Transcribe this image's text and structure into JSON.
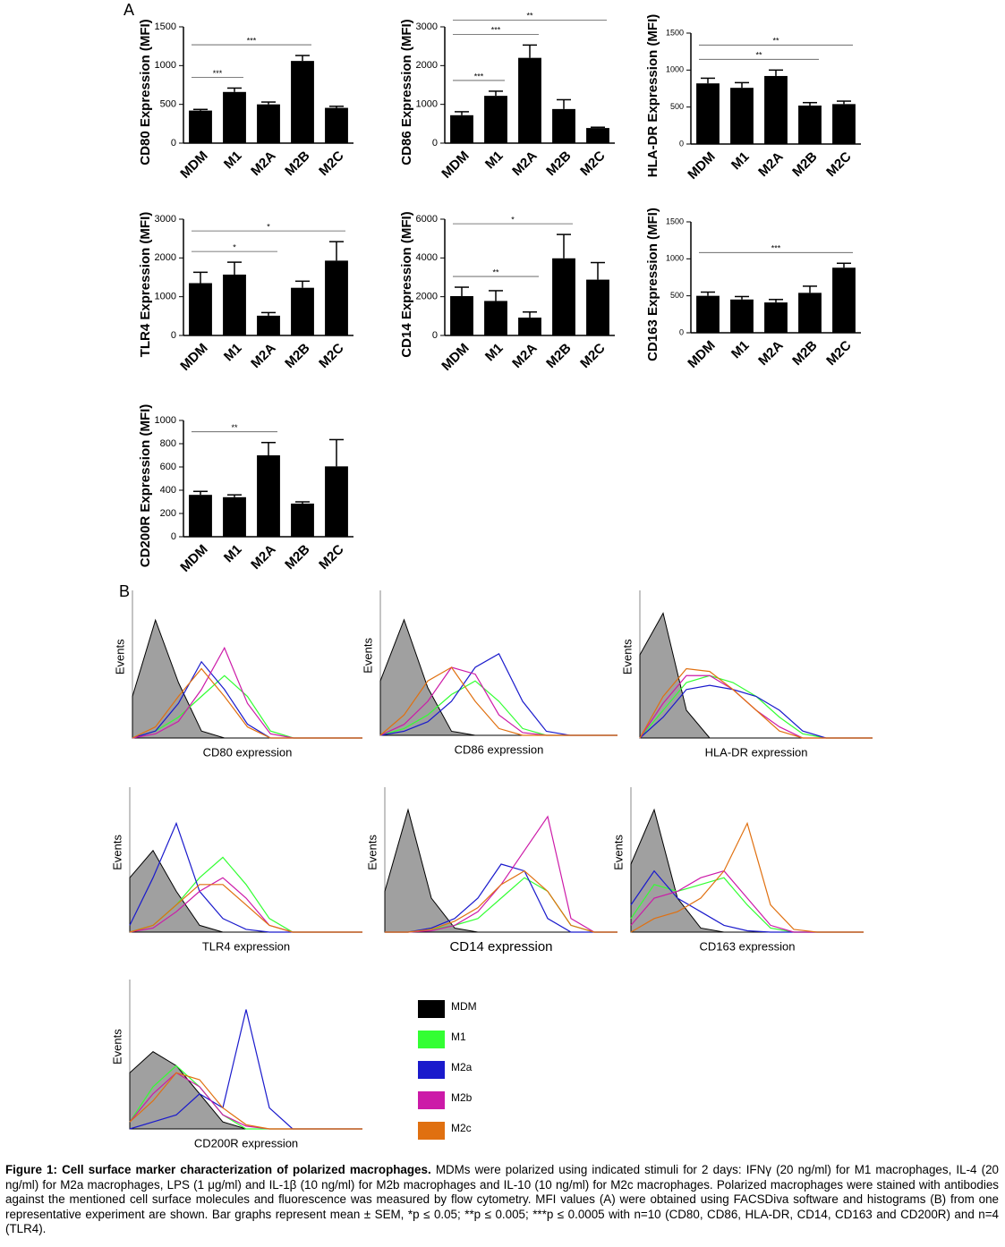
{
  "panels": [
    "A",
    "B"
  ],
  "chart_data": [
    {
      "type": "bar",
      "ylabel": "CD80 Expression (MFI)",
      "categories": [
        "MDM",
        "M1",
        "M2A",
        "M2B",
        "M2C"
      ],
      "values": [
        420,
        660,
        500,
        1060,
        455
      ],
      "errors": [
        15,
        50,
        30,
        70,
        20
      ],
      "color": "#000000",
      "ylim": [
        0,
        1500
      ],
      "yticks": [
        0,
        500,
        1000,
        1500
      ],
      "annotations": [
        {
          "text": "***",
          "from": "MDM",
          "to": "M1"
        },
        {
          "text": "***",
          "from": "MDM",
          "to": "M2B"
        }
      ]
    },
    {
      "type": "bar",
      "ylabel": "CD86 Expression (MFI)",
      "categories": [
        "MDM",
        "M1",
        "M2A",
        "M2B",
        "M2C"
      ],
      "values": [
        720,
        1220,
        2200,
        880,
        390
      ],
      "errors": [
        90,
        120,
        330,
        240,
        20
      ],
      "color": "#000000",
      "ylim": [
        0,
        3000
      ],
      "yticks": [
        0,
        1000,
        2000,
        3000
      ],
      "annotations": [
        {
          "text": "***",
          "from": "MDM",
          "to": "M1"
        },
        {
          "text": "***",
          "from": "MDM",
          "to": "M2A"
        },
        {
          "text": "**",
          "from": "MDM",
          "to": "M2C"
        }
      ]
    },
    {
      "type": "bar",
      "ylabel": "HLA-DR Expression (MFI)",
      "categories": [
        "MDM",
        "M1",
        "M2A",
        "M2B",
        "M2C"
      ],
      "values": [
        820,
        760,
        920,
        520,
        540
      ],
      "errors": [
        70,
        70,
        80,
        40,
        40
      ],
      "color": "#000000",
      "ylim": [
        0,
        1500
      ],
      "yticks": [
        0,
        500,
        1000,
        1500
      ],
      "annotations": [
        {
          "text": "**",
          "from": "MDM",
          "to": "M2B"
        },
        {
          "text": "**",
          "from": "MDM",
          "to": "M2C"
        }
      ]
    },
    {
      "type": "bar",
      "ylabel": "TLR4 Expression (MFI)",
      "categories": [
        "MDM",
        "M1",
        "M2A",
        "M2B",
        "M2C"
      ],
      "values": [
        1350,
        1570,
        510,
        1230,
        1930
      ],
      "errors": [
        280,
        320,
        80,
        170,
        490
      ],
      "color": "#000000",
      "ylim": [
        0,
        3000
      ],
      "yticks": [
        0,
        1000,
        2000,
        3000
      ],
      "annotations": [
        {
          "text": "*",
          "from": "MDM",
          "to": "M2A"
        },
        {
          "text": "*",
          "from": "MDM",
          "to": "M2C"
        }
      ]
    },
    {
      "type": "bar",
      "ylabel": "CD14 Expression (MFI)",
      "categories": [
        "MDM",
        "M1",
        "M2A",
        "M2B",
        "M2C"
      ],
      "values": [
        2030,
        1780,
        920,
        3980,
        2880
      ],
      "errors": [
        460,
        530,
        290,
        1230,
        880
      ],
      "color": "#000000",
      "ylim": [
        0,
        6000
      ],
      "yticks": [
        0,
        2000,
        4000,
        6000
      ],
      "annotations": [
        {
          "text": "**",
          "from": "MDM",
          "to": "M2A"
        },
        {
          "text": "*",
          "from": "MDM",
          "to": "M2B"
        }
      ]
    },
    {
      "type": "bar",
      "ylabel": "CD163 Expression (MFI)",
      "categories": [
        "MDM",
        "M1",
        "M2A",
        "M2B",
        "M2C"
      ],
      "values": [
        500,
        450,
        410,
        540,
        880
      ],
      "errors": [
        50,
        40,
        40,
        90,
        60
      ],
      "color": "#000000",
      "ylim": [
        0,
        1500
      ],
      "yticks": [
        0,
        500,
        1000,
        1500
      ],
      "annotations": [
        {
          "text": "***",
          "from": "MDM",
          "to": "M2C"
        }
      ]
    },
    {
      "type": "bar",
      "ylabel": "CD200R Expression (MFI)",
      "categories": [
        "MDM",
        "M1",
        "M2A",
        "M2B",
        "M2C"
      ],
      "values": [
        360,
        340,
        700,
        285,
        605
      ],
      "errors": [
        30,
        20,
        110,
        15,
        230
      ],
      "color": "#000000",
      "ylim": [
        0,
        1000
      ],
      "yticks": [
        0,
        200,
        400,
        600,
        800,
        1000
      ],
      "annotations": [
        {
          "text": "**",
          "from": "MDM",
          "to": "M2A"
        }
      ]
    },
    {
      "type": "line",
      "xlabel": "CD80 expression",
      "ylabel": "Events",
      "x": [
        0,
        10,
        20,
        30,
        40,
        50,
        60,
        70,
        80,
        90,
        100
      ],
      "xlim": [
        0,
        100
      ],
      "ylim": [
        0,
        100
      ],
      "series": [
        {
          "name": "MDM",
          "color": "#000000",
          "fill": "#a0a0a0",
          "values": [
            30,
            85,
            40,
            5,
            0,
            0,
            0,
            0,
            0,
            0,
            0
          ]
        },
        {
          "name": "M1",
          "color": "#33ff33",
          "values": [
            0,
            5,
            15,
            30,
            45,
            30,
            5,
            0,
            0,
            0,
            0
          ]
        },
        {
          "name": "M2a",
          "color": "#1a1acc",
          "values": [
            0,
            5,
            25,
            55,
            35,
            10,
            0,
            0,
            0,
            0,
            0
          ]
        },
        {
          "name": "M2b",
          "color": "#cc1aa8",
          "values": [
            0,
            3,
            12,
            35,
            65,
            25,
            3,
            0,
            0,
            0,
            0
          ]
        },
        {
          "name": "M2c",
          "color": "#e07010",
          "values": [
            0,
            8,
            30,
            50,
            30,
            8,
            0,
            0,
            0,
            0,
            0
          ]
        }
      ]
    },
    {
      "type": "line",
      "xlabel": "CD86 expression",
      "ylabel": "Events",
      "x": [
        0,
        10,
        20,
        30,
        40,
        50,
        60,
        70,
        80,
        90,
        100
      ],
      "xlim": [
        0,
        100
      ],
      "ylim": [
        0,
        100
      ],
      "series": [
        {
          "name": "MDM",
          "color": "#000000",
          "fill": "#a0a0a0",
          "values": [
            40,
            85,
            35,
            3,
            0,
            0,
            0,
            0,
            0,
            0,
            0
          ]
        },
        {
          "name": "M1",
          "color": "#33ff33",
          "values": [
            0,
            5,
            15,
            30,
            40,
            25,
            5,
            0,
            0,
            0,
            0
          ]
        },
        {
          "name": "M2a",
          "color": "#1a1acc",
          "values": [
            0,
            3,
            10,
            25,
            50,
            60,
            25,
            3,
            0,
            0,
            0
          ]
        },
        {
          "name": "M2b",
          "color": "#cc1aa8",
          "values": [
            0,
            8,
            25,
            50,
            45,
            15,
            2,
            0,
            0,
            0,
            0
          ]
        },
        {
          "name": "M2c",
          "color": "#e07010",
          "values": [
            0,
            15,
            40,
            50,
            25,
            5,
            0,
            0,
            0,
            0,
            0
          ]
        }
      ]
    },
    {
      "type": "line",
      "xlabel": "HLA-DR expression",
      "ylabel": "Events",
      "x": [
        0,
        10,
        20,
        30,
        40,
        50,
        60,
        70,
        80,
        90,
        100
      ],
      "xlim": [
        0,
        100
      ],
      "ylim": [
        0,
        100
      ],
      "series": [
        {
          "name": "MDM",
          "color": "#000000",
          "fill": "#a0a0a0",
          "values": [
            60,
            90,
            20,
            0,
            0,
            0,
            0,
            0,
            0,
            0,
            0
          ]
        },
        {
          "name": "M1",
          "color": "#33ff33",
          "values": [
            0,
            20,
            40,
            45,
            40,
            30,
            15,
            3,
            0,
            0,
            0
          ]
        },
        {
          "name": "M2a",
          "color": "#1a1acc",
          "values": [
            0,
            15,
            35,
            38,
            35,
            30,
            20,
            5,
            0,
            0,
            0
          ]
        },
        {
          "name": "M2b",
          "color": "#cc1aa8",
          "values": [
            0,
            25,
            45,
            45,
            35,
            20,
            8,
            0,
            0,
            0,
            0
          ]
        },
        {
          "name": "M2c",
          "color": "#e07010",
          "values": [
            0,
            30,
            50,
            48,
            35,
            20,
            5,
            0,
            0,
            0,
            0
          ]
        }
      ]
    },
    {
      "type": "line",
      "xlabel": "TLR4 expression",
      "ylabel": "Events",
      "x": [
        0,
        10,
        20,
        30,
        40,
        50,
        60,
        70,
        80,
        90,
        100
      ],
      "xlim": [
        0,
        100
      ],
      "ylim": [
        0,
        100
      ],
      "series": [
        {
          "name": "MDM",
          "color": "#000000",
          "fill": "#a0a0a0",
          "values": [
            40,
            60,
            30,
            5,
            0,
            0,
            0,
            0,
            0,
            0,
            0
          ]
        },
        {
          "name": "M1",
          "color": "#33ff33",
          "values": [
            0,
            5,
            20,
            40,
            55,
            35,
            10,
            0,
            0,
            0,
            0
          ]
        },
        {
          "name": "M2a",
          "color": "#1a1acc",
          "values": [
            5,
            40,
            80,
            30,
            10,
            2,
            0,
            0,
            0,
            0,
            0
          ]
        },
        {
          "name": "M2b",
          "color": "#cc1aa8",
          "values": [
            0,
            3,
            15,
            30,
            40,
            25,
            5,
            0,
            0,
            0,
            0
          ]
        },
        {
          "name": "M2c",
          "color": "#e07010",
          "values": [
            0,
            5,
            20,
            35,
            35,
            20,
            5,
            0,
            0,
            0,
            0
          ]
        }
      ]
    },
    {
      "type": "line",
      "xlabel": "CD14 expression",
      "ylabel": "Events",
      "x": [
        0,
        10,
        20,
        30,
        40,
        50,
        60,
        70,
        80,
        90,
        100
      ],
      "xlim": [
        0,
        100
      ],
      "ylim": [
        0,
        100
      ],
      "series": [
        {
          "name": "MDM",
          "color": "#000000",
          "fill": "#a0a0a0",
          "values": [
            30,
            90,
            25,
            3,
            0,
            0,
            0,
            0,
            0,
            0,
            0
          ]
        },
        {
          "name": "M1",
          "color": "#33ff33",
          "values": [
            0,
            0,
            2,
            5,
            10,
            25,
            40,
            30,
            5,
            0,
            0
          ]
        },
        {
          "name": "M2a",
          "color": "#1a1acc",
          "values": [
            0,
            0,
            3,
            10,
            25,
            50,
            45,
            10,
            0,
            0,
            0
          ]
        },
        {
          "name": "M2b",
          "color": "#cc1aa8",
          "values": [
            0,
            0,
            1,
            5,
            15,
            35,
            60,
            85,
            10,
            0,
            0
          ]
        },
        {
          "name": "M2c",
          "color": "#e07010",
          "values": [
            0,
            0,
            2,
            8,
            18,
            35,
            45,
            30,
            5,
            0,
            0
          ]
        }
      ]
    },
    {
      "type": "line",
      "xlabel": "CD163 expression",
      "ylabel": "Events",
      "x": [
        0,
        10,
        20,
        30,
        40,
        50,
        60,
        70,
        80,
        90,
        100
      ],
      "xlim": [
        0,
        100
      ],
      "ylim": [
        0,
        100
      ],
      "series": [
        {
          "name": "MDM",
          "color": "#000000",
          "fill": "#a0a0a0",
          "values": [
            50,
            90,
            25,
            3,
            0,
            0,
            0,
            0,
            0,
            0,
            0
          ]
        },
        {
          "name": "M1",
          "color": "#33ff33",
          "values": [
            10,
            35,
            30,
            35,
            40,
            20,
            3,
            0,
            0,
            0,
            0
          ]
        },
        {
          "name": "M2a",
          "color": "#1a1acc",
          "values": [
            20,
            45,
            25,
            15,
            5,
            1,
            0,
            0,
            0,
            0,
            0
          ]
        },
        {
          "name": "M2b",
          "color": "#cc1aa8",
          "values": [
            5,
            25,
            30,
            40,
            45,
            25,
            5,
            0,
            0,
            0,
            0
          ]
        },
        {
          "name": "M2c",
          "color": "#e07010",
          "values": [
            0,
            10,
            15,
            25,
            45,
            80,
            20,
            2,
            0,
            0,
            0
          ]
        }
      ]
    },
    {
      "type": "line",
      "xlabel": "CD200R expression",
      "ylabel": "Events",
      "x": [
        0,
        10,
        20,
        30,
        40,
        50,
        60,
        70,
        80,
        90,
        100
      ],
      "xlim": [
        0,
        100
      ],
      "ylim": [
        0,
        100
      ],
      "series": [
        {
          "name": "MDM",
          "color": "#000000",
          "fill": "#a0a0a0",
          "values": [
            40,
            55,
            45,
            25,
            5,
            0,
            0,
            0,
            0,
            0,
            0
          ]
        },
        {
          "name": "M1",
          "color": "#33ff33",
          "values": [
            5,
            30,
            45,
            30,
            10,
            0,
            0,
            0,
            0,
            0,
            0
          ]
        },
        {
          "name": "M2a",
          "color": "#1a1acc",
          "values": [
            0,
            5,
            10,
            25,
            15,
            85,
            15,
            0,
            0,
            0,
            0
          ]
        },
        {
          "name": "M2b",
          "color": "#cc1aa8",
          "values": [
            5,
            25,
            40,
            30,
            10,
            2,
            0,
            0,
            0,
            0,
            0
          ]
        },
        {
          "name": "M2c",
          "color": "#e07010",
          "values": [
            5,
            20,
            40,
            35,
            15,
            3,
            0,
            0,
            0,
            0,
            0
          ]
        }
      ]
    }
  ],
  "caption": {
    "title": "Figure 1: Cell surface marker characterization of polarized macrophages.",
    "text": "MDMs were polarized using indicated stimuli for 2 days: IFNγ (20 ng/ml) for M1 macrophages, IL-4 (20 ng/ml) for M2a macrophages, LPS (1 μg/ml) and IL-1β (10 ng/ml) for M2b macrophages and IL-10 (10 ng/ml) for M2c macrophages. Polarized macrophages were stained with antibodies against the mentioned cell surface molecules and fluorescence was measured by flow cytometry. MFI values (A) were obtained using FACSDiva software and histograms (B) from one representative experiment are shown. Bar graphs represent mean ± SEM, *p ≤ 0.05; **p ≤ 0.005; ***p ≤ 0.0005 with n=10 (CD80, CD86, HLA-DR, CD14, CD163 and CD200R) and n=4 (TLR4)."
  }
}
